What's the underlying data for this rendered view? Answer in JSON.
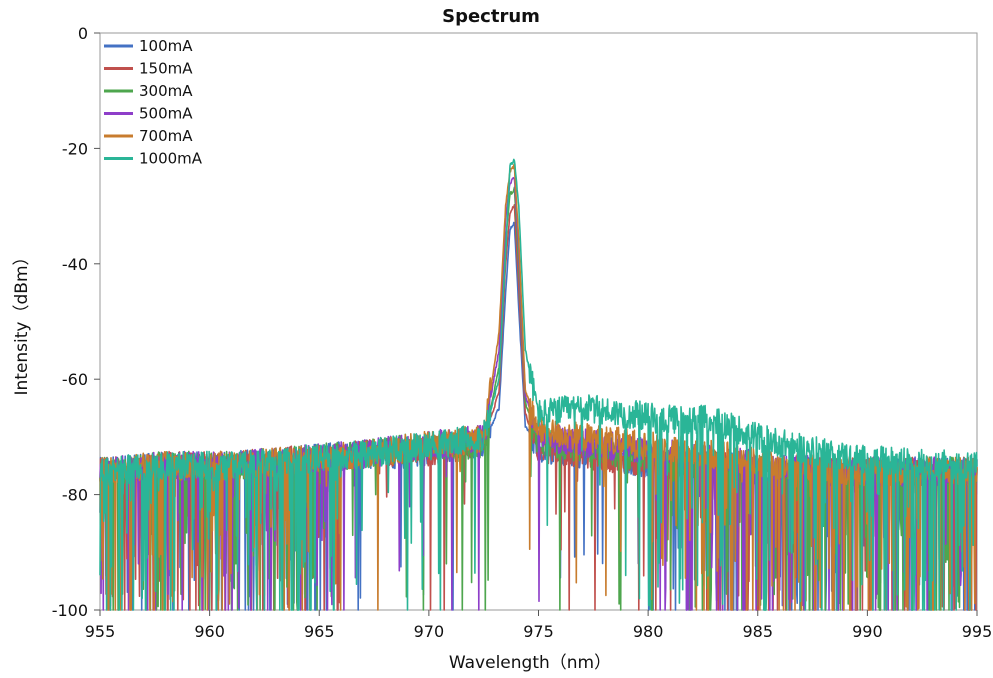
{
  "chart_data": {
    "type": "line",
    "title": "Spectrum",
    "xlabel": "Wavelength（nm）",
    "ylabel": "Intensity（dBm）",
    "xlim": [
      955,
      995
    ],
    "ylim": [
      -100,
      0
    ],
    "x_ticks": [
      "955",
      "960",
      "965",
      "970",
      "975",
      "980",
      "985",
      "990",
      "995"
    ],
    "y_ticks": [
      "0",
      "-20",
      "-40",
      "-60",
      "-80",
      "-100"
    ],
    "grid": false,
    "legend_position": "top-left",
    "series": [
      {
        "name": "100mA",
        "color": "#4472C4",
        "x": [
          955,
          958,
          961,
          964,
          967,
          969,
          971,
          972.5,
          973.2,
          973.5,
          973.7,
          973.9,
          974.1,
          974.4,
          975,
          977,
          979,
          981,
          983,
          986,
          990,
          995
        ],
        "y": [
          -76,
          -75,
          -75,
          -74,
          -73,
          -73,
          -72,
          -71,
          -65,
          -45,
          -34,
          -33,
          -48,
          -68,
          -72,
          -73,
          -74,
          -75,
          -75,
          -76,
          -76,
          -76
        ]
      },
      {
        "name": "150mA",
        "color": "#C0504D",
        "x": [
          955,
          958,
          961,
          964,
          967,
          969,
          971,
          972.5,
          973.2,
          973.5,
          973.7,
          973.9,
          974.1,
          974.4,
          975,
          977,
          979,
          981,
          983,
          986,
          990,
          995
        ],
        "y": [
          -76,
          -75,
          -75,
          -74,
          -73,
          -73,
          -72,
          -71,
          -62,
          -40,
          -31,
          -30,
          -44,
          -66,
          -72,
          -73,
          -74,
          -75,
          -75,
          -76,
          -76,
          -76
        ]
      },
      {
        "name": "300mA",
        "color": "#4EA64E",
        "x": [
          955,
          958,
          961,
          964,
          967,
          969,
          971,
          972.5,
          973.2,
          973.5,
          973.7,
          973.9,
          974.1,
          974.4,
          975,
          977,
          979,
          981,
          983,
          986,
          990,
          995
        ],
        "y": [
          -76,
          -75,
          -75,
          -74,
          -73,
          -72,
          -72,
          -71,
          -58,
          -36,
          -28,
          -27,
          -40,
          -64,
          -71,
          -72,
          -73,
          -74,
          -75,
          -76,
          -76,
          -76
        ]
      },
      {
        "name": "500mA",
        "color": "#8E3EC9",
        "x": [
          955,
          958,
          961,
          964,
          967,
          969,
          971,
          972.5,
          973.2,
          973.5,
          973.7,
          973.9,
          974.1,
          974.4,
          975,
          977,
          979,
          981,
          983,
          986,
          990,
          995
        ],
        "y": [
          -76,
          -75,
          -75,
          -74,
          -73,
          -72,
          -71,
          -70,
          -55,
          -32,
          -26,
          -25,
          -38,
          -63,
          -70,
          -71,
          -72,
          -73,
          -74,
          -75,
          -76,
          -76
        ]
      },
      {
        "name": "700mA",
        "color": "#C87C2E",
        "x": [
          955,
          958,
          961,
          964,
          967,
          969,
          971,
          972.5,
          973.2,
          973.5,
          973.7,
          973.9,
          974.1,
          974.4,
          975,
          977,
          979,
          981,
          983,
          986,
          990,
          995
        ],
        "y": [
          -76,
          -75,
          -75,
          -74,
          -73,
          -72,
          -71,
          -70,
          -52,
          -30,
          -24,
          -23,
          -36,
          -62,
          -69,
          -70,
          -71,
          -72,
          -73,
          -75,
          -76,
          -76
        ]
      },
      {
        "name": "1000mA",
        "color": "#2AB597",
        "x": [
          955,
          958,
          961,
          964,
          967,
          969,
          971,
          972.5,
          973.2,
          973.5,
          973.7,
          973.9,
          974.1,
          974.4,
          975,
          977,
          979,
          981,
          983,
          985,
          987,
          990,
          995
        ],
        "y": [
          -76,
          -75,
          -75,
          -74,
          -73,
          -72,
          -71,
          -70,
          -60,
          -38,
          -23,
          -22,
          -30,
          -55,
          -66,
          -65,
          -66,
          -67,
          -67,
          -70,
          -72,
          -74,
          -75
        ]
      }
    ]
  }
}
